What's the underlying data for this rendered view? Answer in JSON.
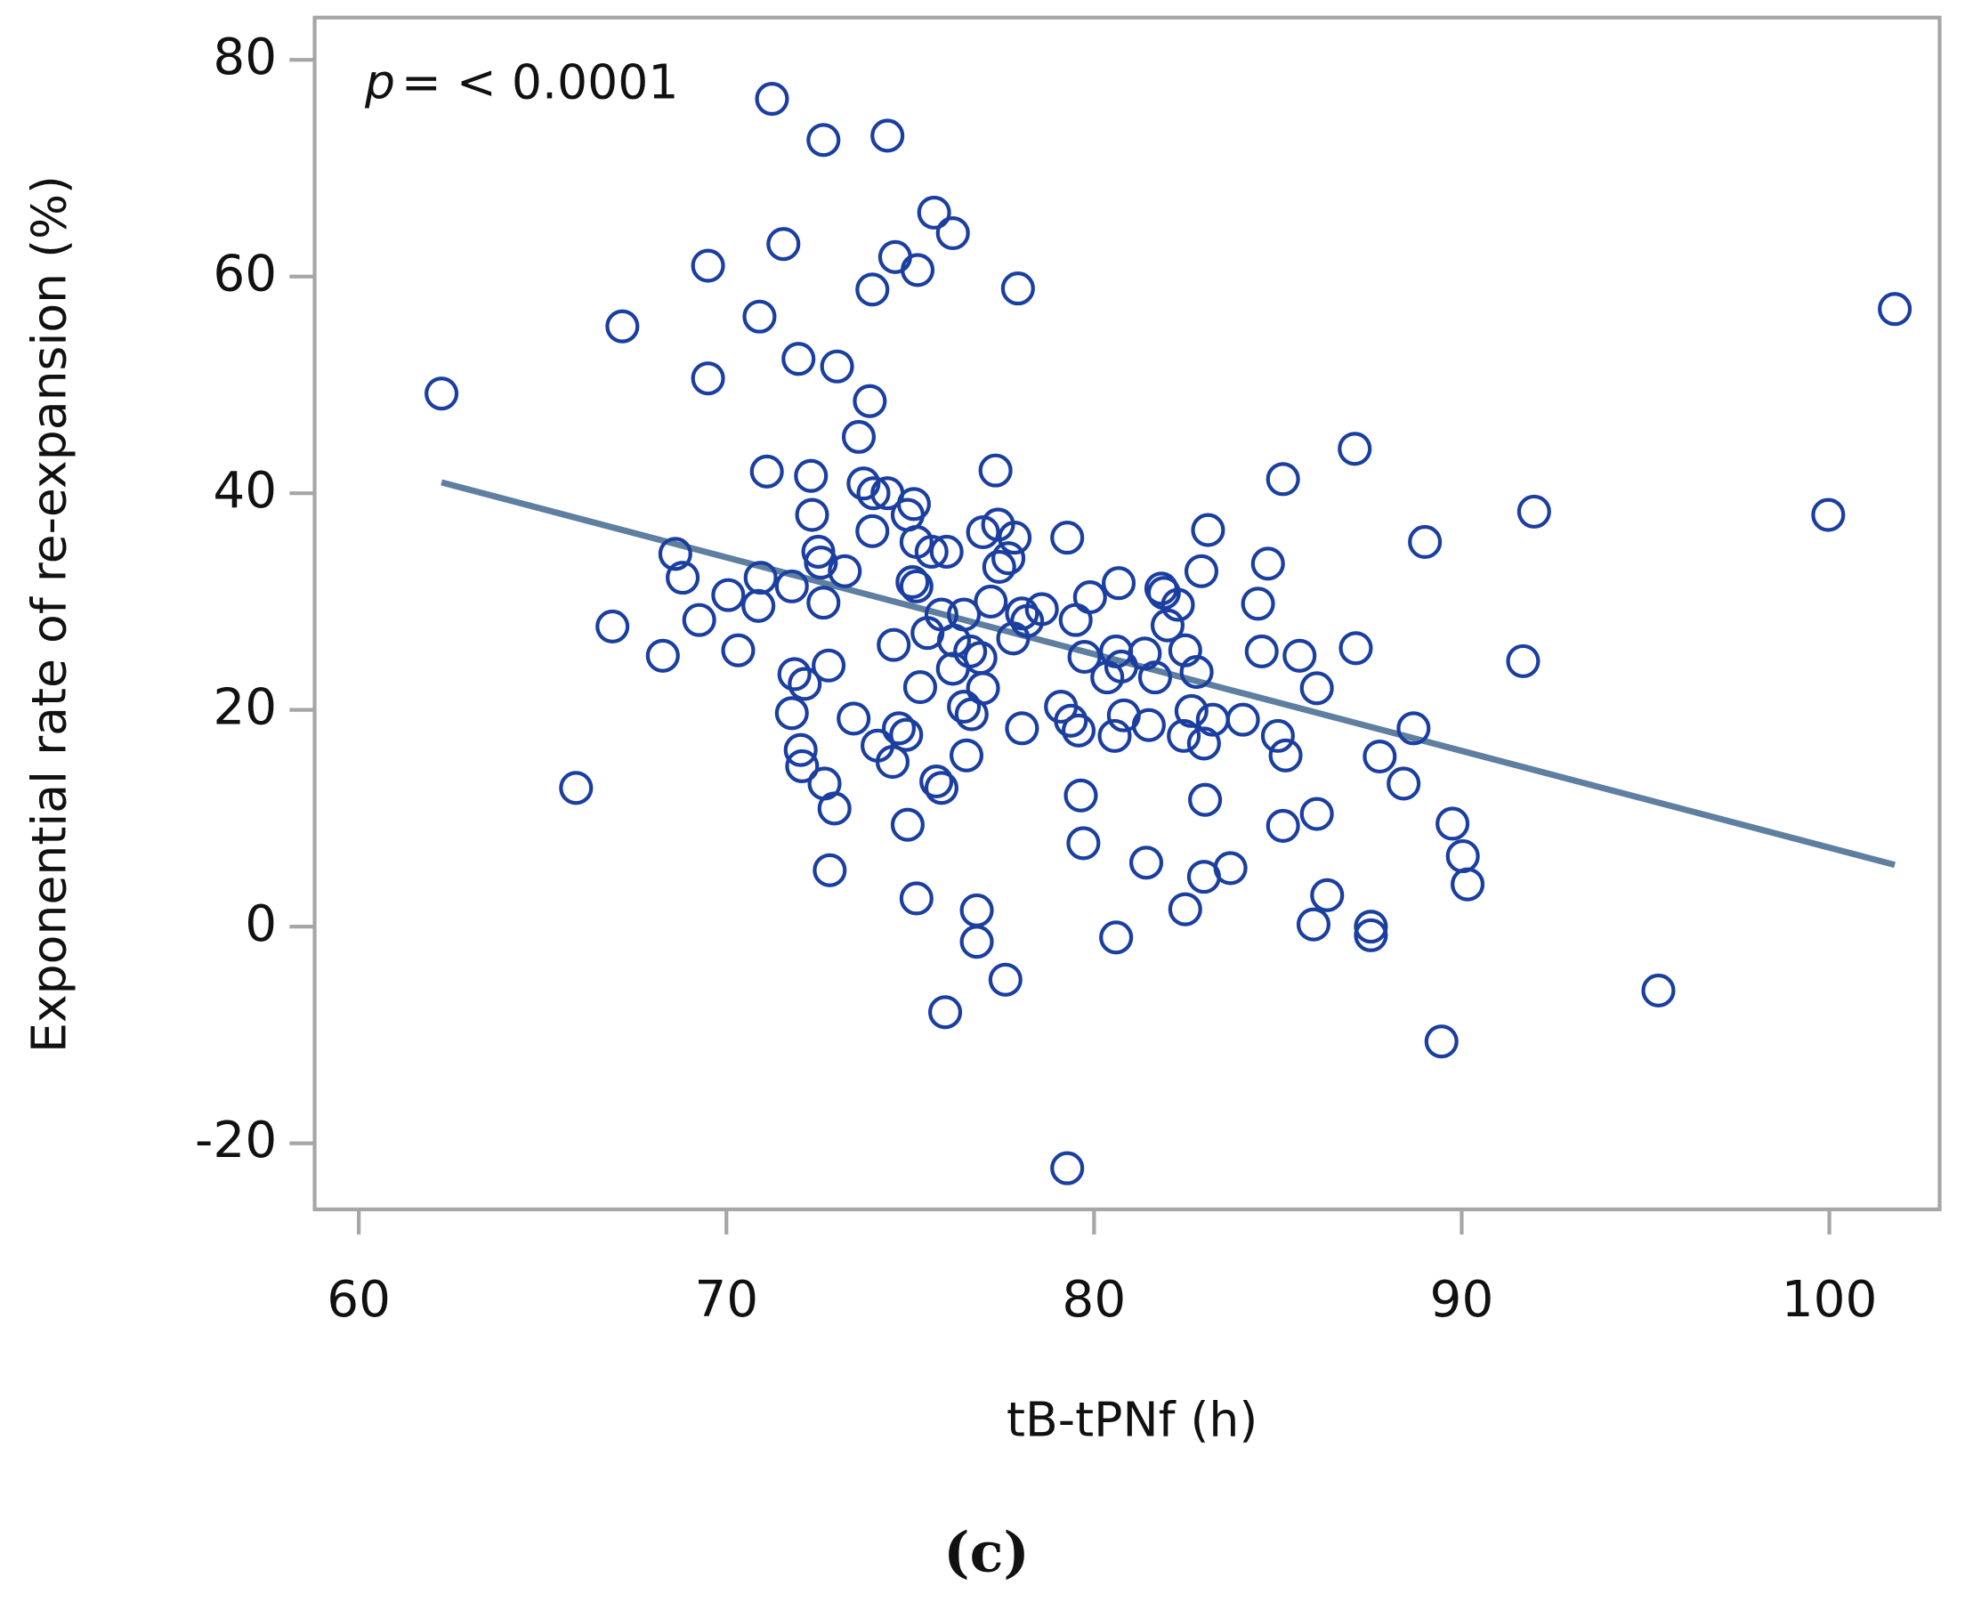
{
  "chart_data": {
    "type": "scatter",
    "xlabel": "tB-tPNf (h)",
    "ylabel": "Exponential rate of re-expansion (%)",
    "annotation": {
      "variable": "p",
      "text": "= < 0.0001"
    },
    "panel_label": "(c)",
    "color": "#1b3fa0",
    "xlim": [
      58.8,
      103.0
    ],
    "ylim": [
      -26.1,
      83.9
    ],
    "xticks": [
      60,
      70,
      80,
      90,
      100
    ],
    "yticks": [
      -20,
      0,
      20,
      40,
      60,
      80
    ],
    "x": [
      62.25,
      71.24,
      72.64,
      74.38,
      75.65,
      76.16,
      71.55,
      74.59,
      75.2,
      69.5,
      73.97,
      77.93,
      70.9,
      67.17,
      71.96,
      73.01,
      69.5,
      73.9,
      73.6,
      87.09,
      71.1,
      72.3,
      77.32,
      85.14,
      73.73,
      74.0,
      74.38,
      75.1,
      72.33,
      91.97,
      99.97,
      73.97,
      74.93,
      76.98,
      77.39,
      77.84,
      83.1,
      79.27,
      89.0,
      68.61,
      72.5,
      75.17,
      75.58,
      75.99,
      77.67,
      84.73,
      72.57,
      68.81,
      70.93,
      73.22,
      75.06,
      75.17,
      77.42,
      82.92,
      71.78,
      80.67,
      81.83,
      81.9,
      70.05,
      70.87,
      72.64,
      79.89,
      77.19,
      82.28,
      84.46,
      78.58,
      78.04,
      78.18,
      75.85,
      76.46,
      69.26,
      79.5,
      66.9,
      82.0,
      75.47,
      77.8,
      76.19,
      68.27,
      70.32,
      74.55,
      76.63,
      79.74,
      80.6,
      81.38,
      82.48,
      84.56,
      85.59,
      87.12,
      91.67,
      72.78,
      76.91,
      76.16,
      80.74,
      82.79,
      71.85,
      80.36,
      81.66,
      72.13,
      75.27,
      76.98,
      86.06,
      76.46,
      76.67,
      79.1,
      82.65,
      71.78,
      79.37,
      79.58,
      80.81,
      81.49,
      83.23,
      84.05,
      73.46,
      78.04,
      74.69,
      74.89,
      80.56,
      82.44,
      82.99,
      85.0,
      88.69,
      74.11,
      72.02,
      85.21,
      87.77,
      76.53,
      74.52,
      72.06,
      75.71,
      75.85,
      72.67,
      88.42,
      65.91,
      79.64,
      83.02,
      72.94,
      86.06,
      74.93,
      85.14,
      89.75,
      79.71,
      90.03,
      81.42,
      72.81,
      83.71,
      82.99,
      90.16,
      86.34,
      75.17,
      76.81,
      82.48,
      85.97,
      87.53,
      87.53,
      76.81,
      80.6,
      77.59,
      75.95,
      95.35,
      89.45,
      79.27,
      101.78
    ],
    "values": [
      49.2,
      76.4,
      72.6,
      73.0,
      65.9,
      64.0,
      63.0,
      61.8,
      60.6,
      61.0,
      58.8,
      58.9,
      56.3,
      55.4,
      52.4,
      51.7,
      50.6,
      48.5,
      45.2,
      44.1,
      42.0,
      41.6,
      42.1,
      41.3,
      40.9,
      40.0,
      40.0,
      39.0,
      38.0,
      38.3,
      38.0,
      36.5,
      38.0,
      36.4,
      37.1,
      35.9,
      36.6,
      35.9,
      35.5,
      34.4,
      34.6,
      35.5,
      34.6,
      34.6,
      34.0,
      33.5,
      33.6,
      32.2,
      32.2,
      32.8,
      31.8,
      31.4,
      33.2,
      32.8,
      31.4,
      31.7,
      31.2,
      30.8,
      30.6,
      29.6,
      29.9,
      30.4,
      30.0,
      29.7,
      29.8,
      29.3,
      28.9,
      28.2,
      28.8,
      28.8,
      28.3,
      28.3,
      27.7,
      27.8,
      27.1,
      26.6,
      26.4,
      25.0,
      25.5,
      26.0,
      25.4,
      24.9,
      25.4,
      25.2,
      25.5,
      25.4,
      25.0,
      25.7,
      24.5,
      24.1,
      24.8,
      23.8,
      24.0,
      23.5,
      23.3,
      23.0,
      23.0,
      22.4,
      22.1,
      22.0,
      22.0,
      20.3,
      19.6,
      20.3,
      19.9,
      19.7,
      19.0,
      18.1,
      19.5,
      18.6,
      19.1,
      19.1,
      19.2,
      18.3,
      18.3,
      17.7,
      17.6,
      17.6,
      16.9,
      17.6,
      18.3,
      16.7,
      16.3,
      15.8,
      15.7,
      15.8,
      15.2,
      14.8,
      13.4,
      12.8,
      13.2,
      13.2,
      12.8,
      12.1,
      11.7,
      10.9,
      10.4,
      9.4,
      9.3,
      9.5,
      7.7,
      6.5,
      5.9,
      5.2,
      5.4,
      4.6,
      3.9,
      2.9,
      2.6,
      1.5,
      1.6,
      0.2,
      0.0,
      -0.8,
      -1.4,
      -1.0,
      -4.9,
      -7.9,
      -5.9,
      -10.6,
      -22.3,
      57.0
    ],
    "trend": {
      "x": [
        62.25,
        101.78
      ],
      "y": [
        41.0,
        5.7
      ],
      "color": "#5f7fa0"
    }
  }
}
